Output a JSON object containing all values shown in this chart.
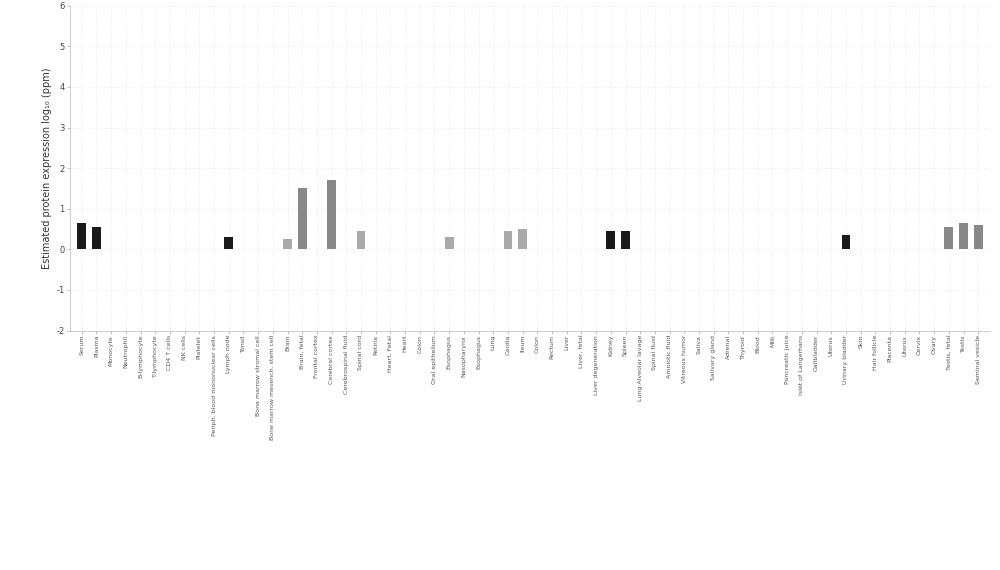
{
  "ylabel": "Estimated protein expression log₁₀ (ppm)",
  "ylim": [
    -2,
    6
  ],
  "yticks": [
    -2,
    -1,
    0,
    1,
    2,
    3,
    4,
    5,
    6
  ],
  "background_color": "#ffffff",
  "categories": [
    "Serum",
    "Plasma",
    "Monocyte",
    "Neutrophil",
    "B-lymphocyte",
    "T-lymphocyte",
    "CD4 T cells",
    "NK cells",
    "Platelet",
    "Periph. blood mononuclear cells",
    "Lymph node",
    "Tonsil",
    "Bone marrow stromal cell",
    "Bone marrow mesench. stem cell",
    "Brain",
    "Brain, fetal",
    "Frontal cortex",
    "Cerebral cortex",
    "Cerebrospinal fluid",
    "Spinal cord",
    "Retina",
    "Heart, Fetal",
    "Heart",
    "Colon",
    "Oral epithelium",
    "Esophagus",
    "Nasopharynx",
    "Esophagus",
    "Lung",
    "Cardia",
    "Ileum",
    "Colon",
    "Rectum",
    "Liver",
    "Liver, fetal",
    "Liver degeneration",
    "Kidney",
    "Spleen",
    "Lung Alveolar lavage",
    "Spinal fluid",
    "Amniotic fluid",
    "Vitreous humor",
    "Saliva",
    "Salivary gland",
    "Adrenal",
    "Thyroid",
    "Blood",
    "Milk",
    "Pancreatic juice",
    "Islet of Langerhans",
    "Gallbladder",
    "Uterus",
    "Urinary bladder",
    "Skin",
    "Hair follicle",
    "Placenta",
    "Uterus",
    "Cervix",
    "Ovary",
    "Testis, fetal",
    "Testis",
    "Seminal vesicle"
  ],
  "values": [
    0.65,
    0.55,
    0.0,
    0.0,
    0.0,
    0.0,
    0.0,
    0.0,
    0.0,
    0.0,
    0.3,
    0.0,
    0.0,
    0.0,
    0.25,
    1.5,
    0.0,
    1.7,
    0.0,
    0.45,
    0.0,
    0.0,
    0.0,
    0.0,
    0.0,
    0.3,
    0.0,
    0.0,
    0.0,
    0.45,
    0.5,
    0.0,
    0.0,
    0.0,
    0.0,
    0.0,
    0.45,
    0.45,
    0.0,
    0.0,
    0.0,
    0.0,
    0.0,
    0.0,
    0.0,
    0.0,
    0.0,
    0.0,
    0.0,
    0.0,
    0.0,
    0.0,
    0.35,
    0.0,
    0.0,
    0.0,
    0.0,
    0.0,
    0.0,
    0.55,
    0.65,
    0.6
  ],
  "bar_colors": [
    "#1a1a1a",
    "#1a1a1a",
    "#aaaaaa",
    "#aaaaaa",
    "#aaaaaa",
    "#aaaaaa",
    "#aaaaaa",
    "#aaaaaa",
    "#aaaaaa",
    "#aaaaaa",
    "#1a1a1a",
    "#aaaaaa",
    "#aaaaaa",
    "#aaaaaa",
    "#aaaaaa",
    "#888888",
    "#aaaaaa",
    "#888888",
    "#aaaaaa",
    "#aaaaaa",
    "#aaaaaa",
    "#aaaaaa",
    "#aaaaaa",
    "#aaaaaa",
    "#aaaaaa",
    "#aaaaaa",
    "#aaaaaa",
    "#aaaaaa",
    "#aaaaaa",
    "#aaaaaa",
    "#aaaaaa",
    "#aaaaaa",
    "#aaaaaa",
    "#aaaaaa",
    "#aaaaaa",
    "#aaaaaa",
    "#1a1a1a",
    "#1a1a1a",
    "#aaaaaa",
    "#aaaaaa",
    "#aaaaaa",
    "#aaaaaa",
    "#aaaaaa",
    "#aaaaaa",
    "#aaaaaa",
    "#aaaaaa",
    "#aaaaaa",
    "#aaaaaa",
    "#aaaaaa",
    "#aaaaaa",
    "#aaaaaa",
    "#aaaaaa",
    "#1a1a1a",
    "#aaaaaa",
    "#aaaaaa",
    "#aaaaaa",
    "#aaaaaa",
    "#aaaaaa",
    "#aaaaaa",
    "#888888",
    "#888888",
    "#888888"
  ],
  "grid_color": "#cccccc",
  "tick_label_fontsize": 4.5,
  "ylabel_fontsize": 7,
  "ytick_fontsize": 6,
  "bar_width": 0.6,
  "figure_width": 10.0,
  "figure_height": 5.7
}
